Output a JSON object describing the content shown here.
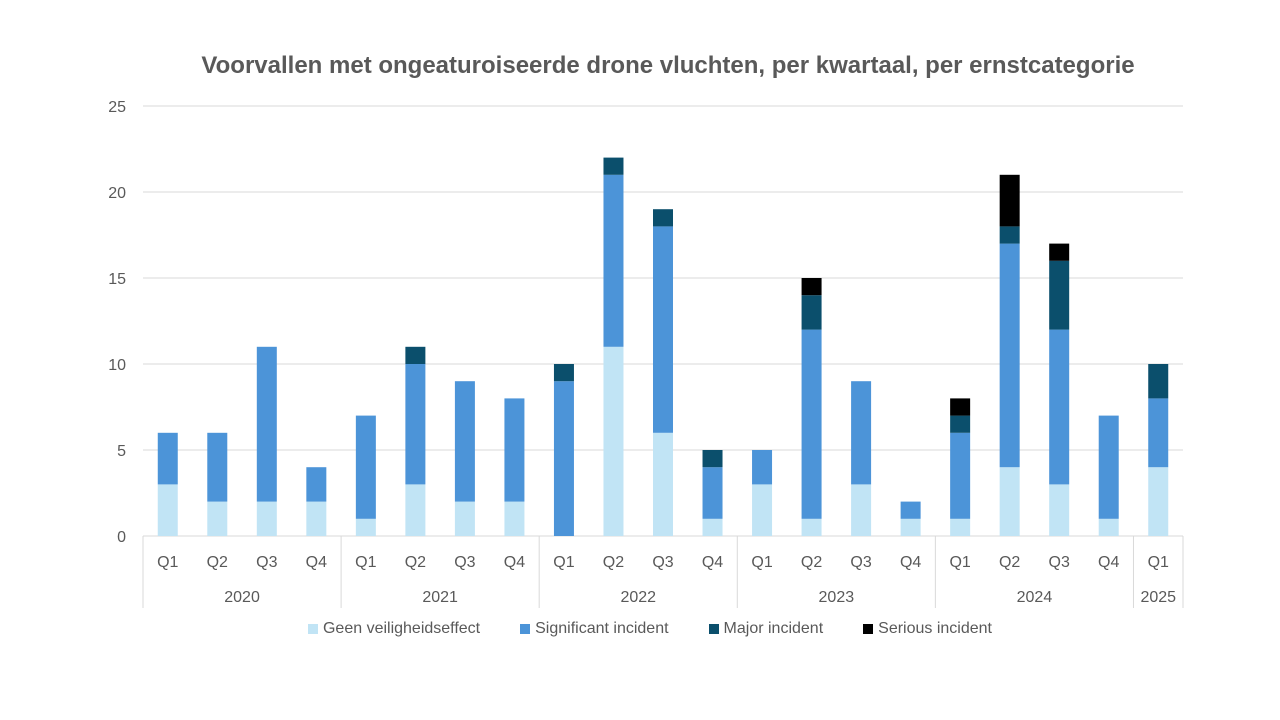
{
  "chart_data": {
    "type": "bar",
    "stacked": true,
    "title": "Voorvallen met ongeaturoiseerde drone vluchten, per kwartaal, per ernstcategorie",
    "xlabel": "",
    "ylabel": "",
    "ylim": [
      0,
      25
    ],
    "yticks": [
      0,
      5,
      10,
      15,
      20,
      25
    ],
    "grid": true,
    "legend_position": "bottom",
    "categories": [
      "Q1",
      "Q2",
      "Q3",
      "Q4",
      "Q1",
      "Q2",
      "Q3",
      "Q4",
      "Q1",
      "Q2",
      "Q3",
      "Q4",
      "Q1",
      "Q2",
      "Q3",
      "Q4",
      "Q1",
      "Q2",
      "Q3",
      "Q4",
      "Q1"
    ],
    "years": [
      {
        "label": "2020",
        "count": 4
      },
      {
        "label": "2021",
        "count": 4
      },
      {
        "label": "2022",
        "count": 4
      },
      {
        "label": "2023",
        "count": 4
      },
      {
        "label": "2024",
        "count": 4
      },
      {
        "label": "2025",
        "count": 1
      }
    ],
    "series": [
      {
        "name": "Geen veiligheidseffect",
        "color": "#C1E4F5",
        "values": [
          3,
          2,
          2,
          2,
          1,
          3,
          2,
          2,
          0,
          11,
          6,
          1,
          3,
          1,
          3,
          1,
          1,
          4,
          3,
          1,
          4
        ]
      },
      {
        "name": "Significant incident",
        "color": "#4C94D8",
        "values": [
          3,
          4,
          9,
          2,
          6,
          7,
          7,
          6,
          9,
          10,
          12,
          3,
          2,
          11,
          6,
          1,
          5,
          13,
          9,
          6,
          4
        ]
      },
      {
        "name": "Major incident",
        "color": "#0B4F6C",
        "values": [
          0,
          0,
          0,
          0,
          0,
          1,
          0,
          0,
          1,
          1,
          1,
          1,
          0,
          2,
          0,
          0,
          1,
          1,
          4,
          0,
          2
        ]
      },
      {
        "name": "Serious incident",
        "color": "#000000",
        "values": [
          0,
          0,
          0,
          0,
          0,
          0,
          0,
          0,
          0,
          0,
          0,
          0,
          0,
          1,
          0,
          0,
          1,
          3,
          1,
          0,
          0
        ]
      }
    ]
  }
}
